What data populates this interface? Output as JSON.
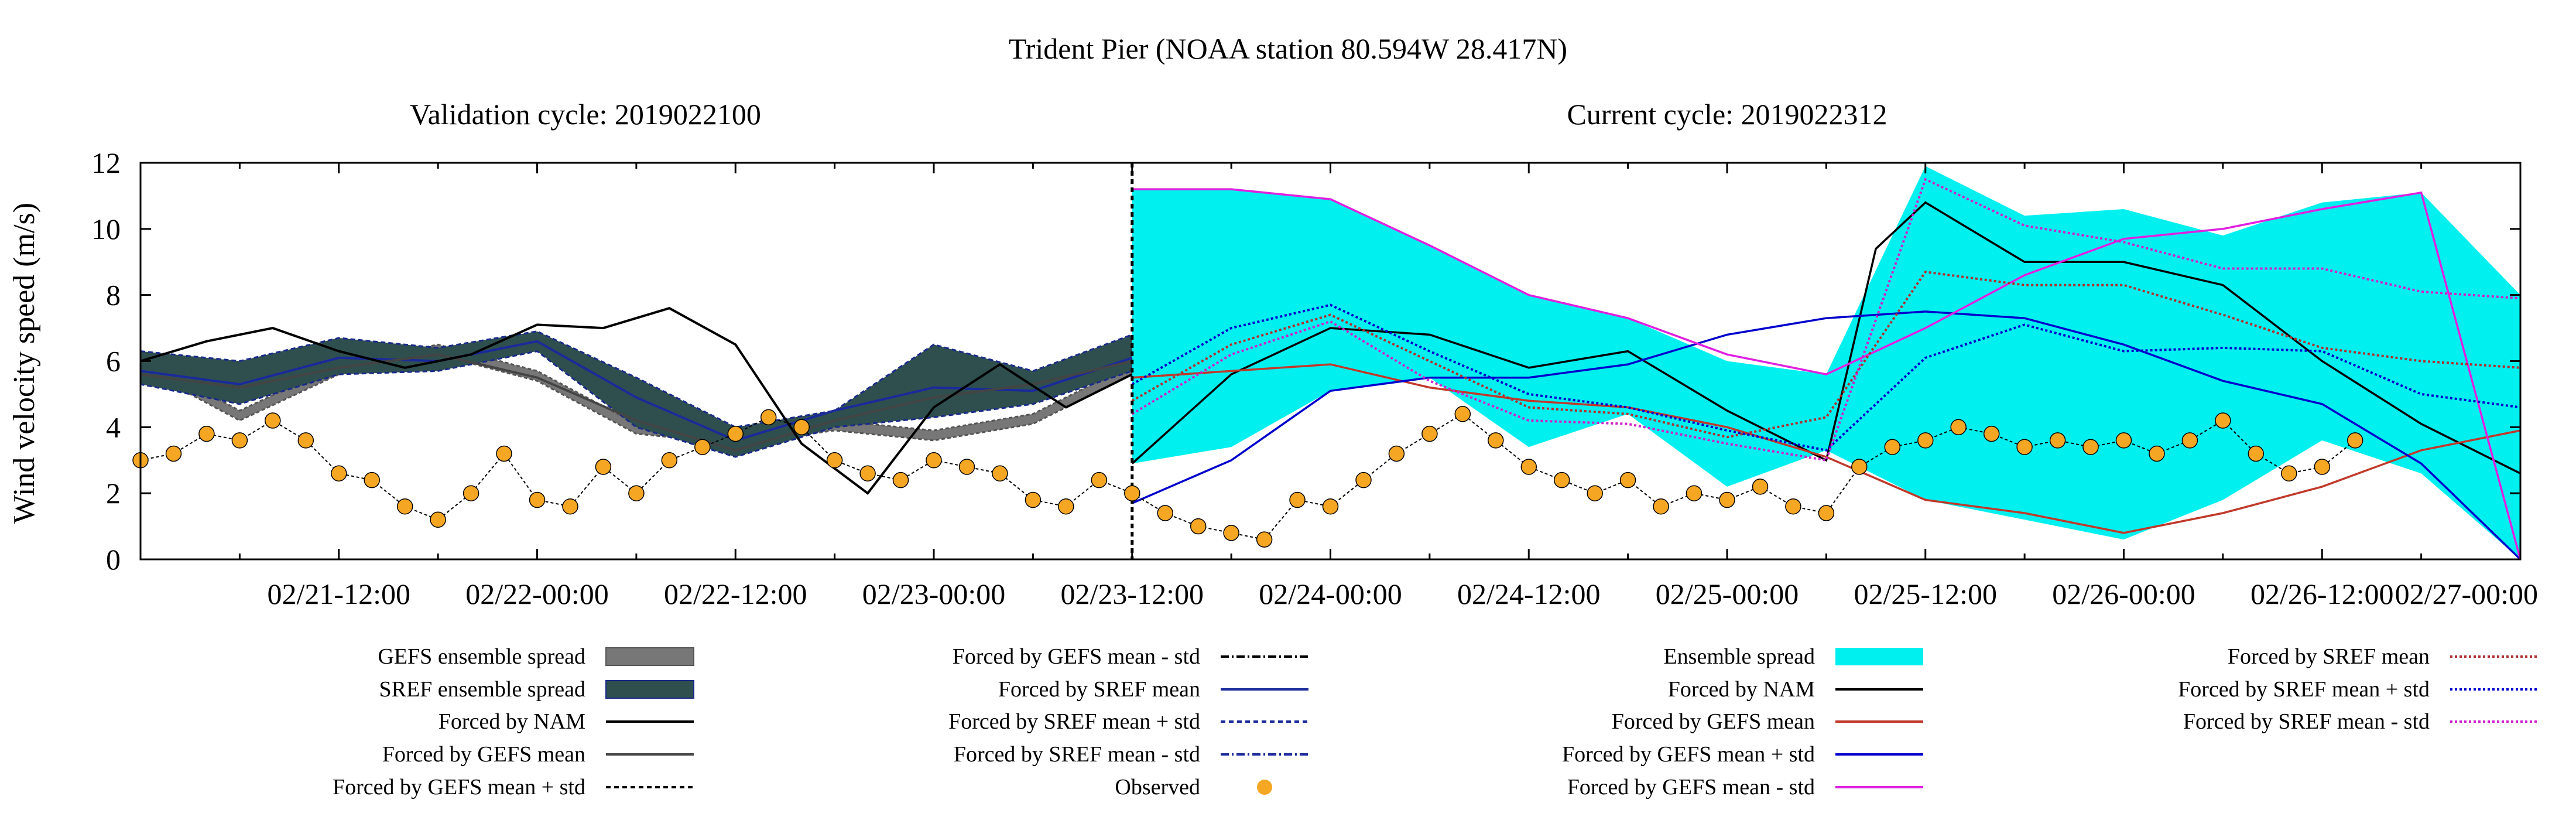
{
  "chart_data": {
    "type": "line",
    "title": "Trident Pier (NOAA station 80.594W 28.417N)",
    "subtitle_left": "Validation cycle: 2019022100",
    "subtitle_right": "Current cycle: 2019022312",
    "ylabel": "Wind velocity speed (m/s)",
    "xlabel": "",
    "ylim": [
      0,
      12
    ],
    "yticks": [
      "0",
      "2",
      "4",
      "6",
      "8",
      "10",
      "12"
    ],
    "xlim_hours_note_free": true,
    "xticks": [
      "02/21-12:00",
      "02/22-00:00",
      "02/22-12:00",
      "02/23-00:00",
      "02/23-12:00",
      "02/24-00:00",
      "02/24-12:00",
      "02/25-00:00",
      "02/25-12:00",
      "02/26-00:00",
      "02/26-12:00",
      "02/27-00:00"
    ],
    "grid": false,
    "legend_placement": "below",
    "cycle_boundary": "02/23-12:00",
    "validation_series": {
      "gefs_spread": {
        "x": [
          "02/21-00:00",
          "02/21-06:00",
          "02/21-12:00",
          "02/21-18:00",
          "02/22-00:00",
          "02/22-06:00",
          "02/22-12:00",
          "02/22-18:00",
          "02/23-00:00",
          "02/23-06:00",
          "02/23-12:00"
        ],
        "upper": [
          6.1,
          4.5,
          5.9,
          6.5,
          5.7,
          4.1,
          3.8,
          4.2,
          3.9,
          4.4,
          5.9
        ],
        "lower": [
          5.8,
          4.2,
          5.6,
          6.2,
          5.4,
          3.8,
          3.5,
          3.9,
          3.6,
          4.1,
          5.6
        ]
      },
      "sref_spread": {
        "x": [
          "02/21-00:00",
          "02/21-06:00",
          "02/21-12:00",
          "02/21-18:00",
          "02/22-00:00",
          "02/22-06:00",
          "02/22-12:00",
          "02/22-18:00",
          "02/23-00:00",
          "02/23-06:00",
          "02/23-12:00"
        ],
        "upper": [
          6.3,
          6.0,
          6.7,
          6.4,
          6.9,
          5.5,
          4.0,
          4.5,
          6.5,
          5.7,
          6.8
        ],
        "lower": [
          5.3,
          4.7,
          5.6,
          5.7,
          6.3,
          4.0,
          3.1,
          4.0,
          4.3,
          4.7,
          5.7
        ]
      },
      "nam": {
        "x": [
          "02/21-00:00",
          "02/21-04:00",
          "02/21-08:00",
          "02/21-12:00",
          "02/21-16:00",
          "02/21-20:00",
          "02/22-00:00",
          "02/22-04:00",
          "02/22-08:00",
          "02/22-12:00",
          "02/22-16:00",
          "02/22-20:00",
          "02/23-00:00",
          "02/23-04:00",
          "02/23-08:00",
          "02/23-12:00"
        ],
        "y": [
          6.0,
          6.6,
          7.0,
          6.3,
          5.8,
          6.2,
          7.1,
          7.0,
          7.6,
          6.5,
          3.5,
          2.0,
          4.6,
          5.9,
          4.6,
          5.6
        ]
      },
      "gefs_mean": {
        "x": [
          "02/21-00:00",
          "02/21-06:00",
          "02/21-12:00",
          "02/21-18:00",
          "02/22-00:00",
          "02/22-06:00",
          "02/22-12:00",
          "02/22-18:00",
          "02/23-00:00",
          "02/23-06:00",
          "02/23-12:00"
        ],
        "y": [
          5.6,
          5.2,
          5.8,
          6.2,
          5.5,
          4.2,
          3.3,
          4.2,
          4.9,
          5.3,
          6.0
        ]
      },
      "sref_mean": {
        "x": [
          "02/21-00:00",
          "02/21-06:00",
          "02/21-12:00",
          "02/21-18:00",
          "02/22-00:00",
          "02/22-06:00",
          "02/22-12:00",
          "02/22-18:00",
          "02/23-00:00",
          "02/23-06:00",
          "02/23-12:00"
        ],
        "y": [
          5.7,
          5.3,
          6.1,
          6.0,
          6.6,
          4.9,
          3.6,
          4.5,
          5.2,
          5.1,
          6.1
        ]
      }
    },
    "observed": {
      "x_hours": [
        0,
        2,
        4,
        6,
        8,
        10,
        12,
        14,
        16,
        18,
        20,
        22,
        24,
        26,
        28,
        30,
        32,
        34,
        36,
        38,
        40,
        42,
        44,
        46,
        48,
        50,
        52,
        54,
        56,
        58,
        60,
        62,
        64,
        66,
        68,
        70,
        72,
        74,
        76,
        78,
        80,
        82,
        84,
        86,
        88,
        90,
        92,
        94,
        96,
        98,
        100,
        102,
        104,
        106,
        108,
        110,
        112,
        114,
        116,
        118,
        120,
        122,
        124,
        126,
        128,
        130,
        132,
        134
      ],
      "y": [
        3.0,
        3.2,
        3.8,
        3.6,
        4.2,
        3.6,
        2.6,
        2.4,
        1.6,
        1.2,
        2.0,
        3.2,
        1.8,
        1.6,
        2.8,
        2.0,
        3.0,
        3.4,
        3.8,
        4.3,
        4.0,
        3.0,
        2.6,
        2.4,
        3.0,
        2.8,
        2.6,
        1.8,
        1.6,
        2.4,
        2.0,
        1.4,
        1.0,
        0.8,
        0.6,
        1.8,
        1.6,
        2.4,
        3.2,
        3.8,
        4.4,
        3.6,
        2.8,
        2.4,
        2.0,
        2.4,
        1.6,
        2.0,
        1.8,
        2.2,
        1.6,
        1.4,
        2.8,
        3.4,
        3.6,
        4.0,
        3.8,
        3.4,
        3.6,
        3.4,
        3.6,
        3.2,
        3.6,
        4.2,
        3.2,
        2.6,
        2.8,
        3.6
      ],
      "x_start": "02/21-00:00",
      "x_step_note_free": true
    },
    "ensemble_spread_forecast": {
      "x": [
        "02/23-12:00",
        "02/23-18:00",
        "02/24-00:00",
        "02/24-06:00",
        "02/24-12:00",
        "02/24-18:00",
        "02/25-00:00",
        "02/25-06:00",
        "02/25-12:00",
        "02/25-18:00",
        "02/26-00:00",
        "02/26-06:00",
        "02/26-12:00",
        "02/26-18:00",
        "02/27-00:00"
      ],
      "upper": [
        11.2,
        11.2,
        10.9,
        9.5,
        8.0,
        7.3,
        6.0,
        5.6,
        11.9,
        10.4,
        10.6,
        9.8,
        10.8,
        11.1,
        8.0
      ],
      "lower": [
        2.9,
        3.4,
        5.1,
        5.5,
        3.4,
        4.4,
        2.2,
        3.3,
        1.8,
        1.2,
        0.6,
        1.8,
        3.6,
        2.6,
        0.0
      ]
    },
    "forecast_series": [
      {
        "name": "Forced by NAM",
        "color": "#000000",
        "x": [
          "02/23-12:00",
          "02/23-18:00",
          "02/24-00:00",
          "02/24-06:00",
          "02/24-12:00",
          "02/24-18:00",
          "02/25-00:00",
          "02/25-06:00",
          "02/25-09:00",
          "02/25-12:00",
          "02/25-18:00",
          "02/26-00:00",
          "02/26-06:00",
          "02/26-12:00",
          "02/26-18:00",
          "02/27-00:00"
        ],
        "y": [
          2.9,
          5.6,
          7.0,
          6.8,
          5.8,
          6.3,
          4.5,
          3.0,
          9.4,
          10.8,
          9.0,
          9.0,
          8.3,
          6.0,
          4.1,
          2.6
        ]
      },
      {
        "name": "Forced by GEFS mean",
        "color": "#c0392b",
        "x": [
          "02/23-12:00",
          "02/23-18:00",
          "02/24-00:00",
          "02/24-06:00",
          "02/24-12:00",
          "02/24-18:00",
          "02/25-00:00",
          "02/25-06:00",
          "02/25-12:00",
          "02/25-18:00",
          "02/26-00:00",
          "02/26-06:00",
          "02/26-12:00",
          "02/26-18:00",
          "02/27-00:00"
        ],
        "y": [
          5.5,
          5.7,
          5.9,
          5.2,
          4.8,
          4.6,
          4.0,
          3.1,
          1.8,
          1.4,
          0.8,
          1.4,
          2.2,
          3.3,
          3.9
        ]
      },
      {
        "name": "Forced by GEFS mean + std",
        "color": "#0000cc",
        "x": [
          "02/23-12:00",
          "02/23-18:00",
          "02/24-00:00",
          "02/24-06:00",
          "02/24-12:00",
          "02/24-18:00",
          "02/25-00:00",
          "02/25-06:00",
          "02/25-12:00",
          "02/25-18:00",
          "02/26-00:00",
          "02/26-06:00",
          "02/26-12:00",
          "02/26-18:00",
          "02/27-00:00"
        ],
        "y": [
          1.7,
          3.0,
          5.1,
          5.5,
          5.5,
          5.9,
          6.8,
          7.3,
          7.5,
          7.3,
          6.5,
          5.4,
          4.7,
          2.9,
          0.0
        ]
      },
      {
        "name": "Forced by GEFS mean - std",
        "color": "#e020e0",
        "x": [
          "02/23-12:00",
          "02/23-18:00",
          "02/24-00:00",
          "02/24-06:00",
          "02/24-12:00",
          "02/24-18:00",
          "02/25-00:00",
          "02/25-06:00",
          "02/25-12:00",
          "02/25-18:00",
          "02/26-00:00",
          "02/26-06:00",
          "02/26-12:00",
          "02/26-18:00",
          "02/27-00:00"
        ],
        "y": [
          11.2,
          11.2,
          10.9,
          9.5,
          8.0,
          7.3,
          6.2,
          5.6,
          7.0,
          8.6,
          9.7,
          10.0,
          10.6,
          11.1,
          0.0
        ]
      },
      {
        "name": "Forced by SREF mean",
        "color": "#b03030",
        "x": [
          "02/23-12:00",
          "02/23-18:00",
          "02/24-00:00",
          "02/24-06:00",
          "02/24-12:00",
          "02/24-18:00",
          "02/25-00:00",
          "02/25-06:00",
          "02/25-12:00",
          "02/25-18:00",
          "02/26-00:00",
          "02/26-06:00",
          "02/26-12:00",
          "02/26-18:00",
          "02/27-00:00"
        ],
        "y": [
          4.8,
          6.5,
          7.4,
          6.0,
          4.6,
          4.4,
          3.7,
          4.3,
          8.7,
          8.3,
          8.3,
          7.4,
          6.4,
          6.0,
          5.8
        ]
      },
      {
        "name": "Forced by SREF mean + std",
        "color": "#0000cc",
        "x": [
          "02/23-12:00",
          "02/23-18:00",
          "02/24-00:00",
          "02/24-06:00",
          "02/24-12:00",
          "02/24-18:00",
          "02/25-00:00",
          "02/25-06:00",
          "02/25-12:00",
          "02/25-18:00",
          "02/26-00:00",
          "02/26-06:00",
          "02/26-12:00",
          "02/26-18:00",
          "02/27-00:00"
        ],
        "y": [
          5.3,
          7.0,
          7.7,
          6.3,
          5.0,
          4.6,
          3.9,
          3.3,
          6.1,
          7.1,
          6.3,
          6.4,
          6.3,
          5.0,
          4.6
        ]
      },
      {
        "name": "Forced by SREF mean - std",
        "color": "#cc22cc",
        "x": [
          "02/23-12:00",
          "02/23-18:00",
          "02/24-00:00",
          "02/24-06:00",
          "02/24-12:00",
          "02/24-18:00",
          "02/25-00:00",
          "02/25-06:00",
          "02/25-12:00",
          "02/25-18:00",
          "02/26-00:00",
          "02/26-06:00",
          "02/26-12:00",
          "02/26-18:00",
          "02/27-00:00"
        ],
        "y": [
          4.4,
          6.2,
          7.2,
          5.4,
          4.2,
          4.1,
          3.5,
          3.0,
          11.5,
          10.1,
          9.6,
          8.8,
          8.8,
          8.1,
          7.9
        ]
      }
    ],
    "legend": {
      "col1": [
        "GEFS ensemble spread",
        "SREF ensemble spread",
        "Forced by NAM",
        "Forced by GEFS mean",
        "Forced by GEFS mean + std"
      ],
      "col2": [
        "Forced by GEFS mean - std",
        "Forced by SREF mean",
        "Forced by SREF mean + std",
        "Forced by SREF mean - std",
        "Observed"
      ],
      "col3": [
        "Ensemble spread",
        "Forced by NAM",
        "Forced by GEFS mean",
        "Forced by GEFS mean + std",
        "Forced by GEFS mean - std"
      ],
      "col4": [
        "Forced by SREF mean",
        "Forced by SREF mean + std",
        "Forced by SREF mean - std"
      ]
    },
    "colors": {
      "gefs_spread": "#777777",
      "sref_spread": "#2f4f4f",
      "ensemble_spread": "#00f0f0",
      "observed": "#f5a623",
      "axis": "#000000"
    }
  }
}
